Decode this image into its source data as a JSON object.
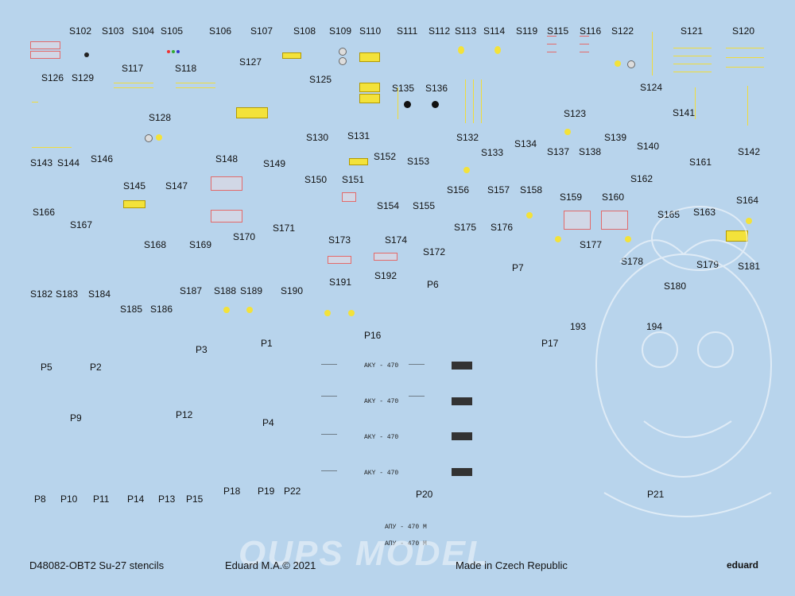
{
  "sheet": {
    "background": "#b8d4ec",
    "decal_labels": [
      "S102",
      "S103",
      "S104",
      "S105",
      "S106",
      "S107",
      "S108",
      "S109",
      "S110",
      "S111",
      "S112",
      "S113",
      "S114",
      "S119",
      "S115",
      "S116",
      "S122",
      "S121",
      "S120",
      "S126",
      "S129",
      "S117",
      "S118",
      "S127",
      "S125",
      "S135",
      "S136",
      "S124",
      "S128",
      "S141",
      "S123",
      "S130",
      "S131",
      "S132",
      "S133",
      "S134",
      "S137",
      "S138",
      "S139",
      "S140",
      "S142",
      "S143",
      "S144",
      "S146",
      "S148",
      "S149",
      "S152",
      "S153",
      "S161",
      "S150",
      "S151",
      "S145",
      "S147",
      "S156",
      "S157",
      "S158",
      "S159",
      "S160",
      "S162",
      "S166",
      "S154",
      "S155",
      "S163",
      "S164",
      "S165",
      "S167",
      "S170",
      "S171",
      "S175",
      "S176",
      "S168",
      "S169",
      "S173",
      "S174",
      "S172",
      "S177",
      "S178",
      "S179",
      "S181",
      "P7",
      "S191",
      "S192",
      "P6",
      "S180",
      "S182",
      "S183",
      "S184",
      "S187",
      "S188",
      "S189",
      "S190",
      "S185",
      "S186",
      "193",
      "194",
      "P16",
      "P17",
      "P3",
      "P1",
      "P5",
      "P2",
      "P9",
      "P12",
      "P4",
      "P8",
      "P10",
      "P11",
      "P14",
      "P13",
      "P15",
      "P18",
      "P19",
      "P22",
      "P20",
      "P21"
    ],
    "aky_texts": [
      "AKY - 470",
      "AKY - 470",
      "AKY - 470",
      "AKY - 470",
      "АПУ - 470 М",
      "АПУ - 470 М"
    ],
    "footer": {
      "left": "D48082-OBT2 Su-27 stencils",
      "center": "Eduard M.A.© 2021",
      "right": "Made in Czech Republic",
      "brand": "eduard"
    },
    "watermark": "OUPS MODEL",
    "colors": {
      "yellow": "#f3e23a",
      "red": "#e36a6a",
      "black": "#333333"
    }
  }
}
